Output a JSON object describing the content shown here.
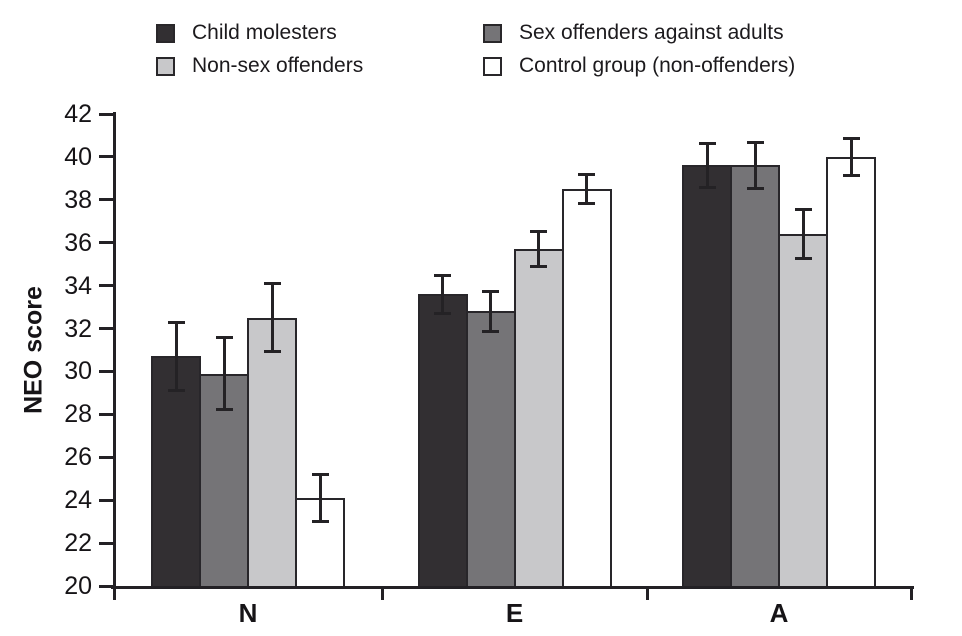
{
  "chart_data": {
    "type": "bar",
    "title": "",
    "ylabel": "NEO score",
    "xlabel": "",
    "ylim": [
      20,
      42
    ],
    "y_ticks": [
      20,
      22,
      24,
      26,
      28,
      30,
      32,
      34,
      36,
      38,
      40,
      42
    ],
    "categories": [
      "N",
      "E",
      "A"
    ],
    "grid": false,
    "legend_position": "top",
    "legend_columns": 2,
    "axis_color": "#232125",
    "bar_border_color": "#28262a",
    "error_bar_color": "#242225",
    "series": [
      {
        "name": "Child molesters",
        "color": "#322f32",
        "values": [
          30.7,
          33.6,
          39.6
        ],
        "errors": [
          1.6,
          0.9,
          1.05
        ]
      },
      {
        "name": "Sex offenders against adults",
        "color": "#757477",
        "values": [
          29.9,
          32.8,
          39.6
        ],
        "errors": [
          1.7,
          0.95,
          1.1
        ]
      },
      {
        "name": "Non-sex offenders",
        "color": "#c8c8ca",
        "values": [
          32.5,
          35.7,
          36.4
        ],
        "errors": [
          1.6,
          0.85,
          1.15
        ]
      },
      {
        "name": "Control group (non-offenders)",
        "color": "#ffffff",
        "values": [
          24.1,
          38.5,
          40.0
        ],
        "errors": [
          1.1,
          0.7,
          0.9
        ]
      }
    ]
  }
}
